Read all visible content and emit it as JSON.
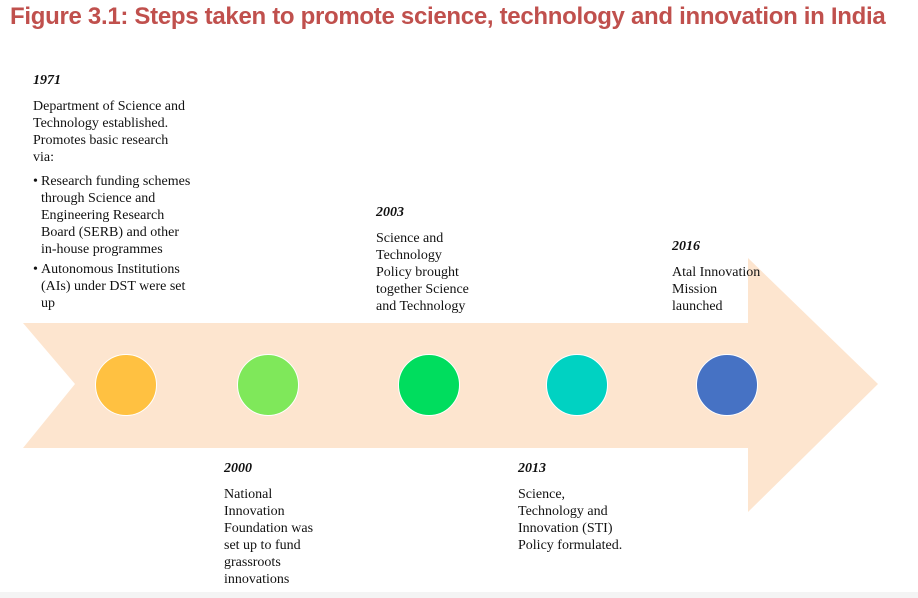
{
  "title": "Figure 3.1: Steps taken to promote science, technology and innovation in India",
  "colors": {
    "title": "#c0504d",
    "arrow": "#fde5cf",
    "dot_1971": "#ffc141",
    "dot_2000": "#7fe85a",
    "dot_2003": "#00dd5e",
    "dot_2013": "#00d2c2",
    "dot_2016": "#4672c4"
  },
  "events": {
    "e1971": {
      "year": "1971",
      "text": "Department of Science and\nTechnology established.\nPromotes basic research\nvia:",
      "bullets": [
        "Research funding schemes\nthrough Science and\nEngineering Research\nBoard (SERB) and other\nin-house programmes",
        "Autonomous Institutions\n(AIs) under DST were set\nup"
      ]
    },
    "e2000": {
      "year": "2000",
      "text": "National\nInnovation\nFoundation  was\nset up to fund\ngrassroots\ninnovations"
    },
    "e2003": {
      "year": "2003",
      "text": "Science and\nTechnology\nPolicy brought\ntogether Science\nand Technology"
    },
    "e2013": {
      "year": "2013",
      "text": "Science,\nTechnology and\nInnovation (STI)\nPolicy formulated."
    },
    "e2016": {
      "year": "2016",
      "text": "Atal Innovation\nMission\nlaunched"
    }
  }
}
